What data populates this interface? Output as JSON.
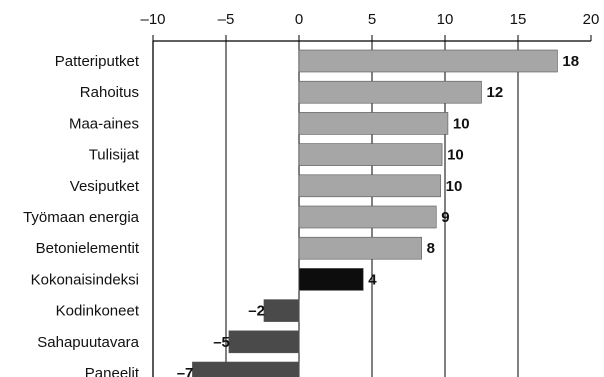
{
  "chart_data": {
    "type": "bar",
    "orientation": "horizontal",
    "title": "",
    "xlabel": "",
    "ylabel": "",
    "xlim": [
      -10,
      20
    ],
    "x_ticks": [
      -10,
      -5,
      0,
      5,
      10,
      15,
      20
    ],
    "x_tick_labels": [
      "–10",
      "–5",
      "0",
      "5",
      "10",
      "15",
      "20"
    ],
    "grid": true,
    "grid_axis": "x",
    "x_axis_position": "top",
    "categories": [
      "Patteriputket",
      "Rahoitus",
      "Maa-aines",
      "Tulisijat",
      "Vesiputket",
      "Työmaan energia",
      "Betonielementit",
      "Kokonaisindeksi",
      "Kodinkoneet",
      "Sahapuutavara",
      "Paneelit"
    ],
    "values": [
      17.7,
      12.5,
      10.2,
      9.8,
      9.7,
      9.4,
      8.4,
      4.4,
      -2.4,
      -4.8,
      -7.3
    ],
    "data_labels": [
      "18",
      "12",
      "10",
      "10",
      "10",
      "9",
      "8",
      "4",
      "–2",
      "–5",
      "–7"
    ],
    "bar_colors": [
      "#a6a6a6",
      "#a6a6a6",
      "#a6a6a6",
      "#a6a6a6",
      "#a6a6a6",
      "#a6a6a6",
      "#a6a6a6",
      "#0d0d0d",
      "#4a4a4a",
      "#4a4a4a",
      "#4a4a4a"
    ]
  }
}
